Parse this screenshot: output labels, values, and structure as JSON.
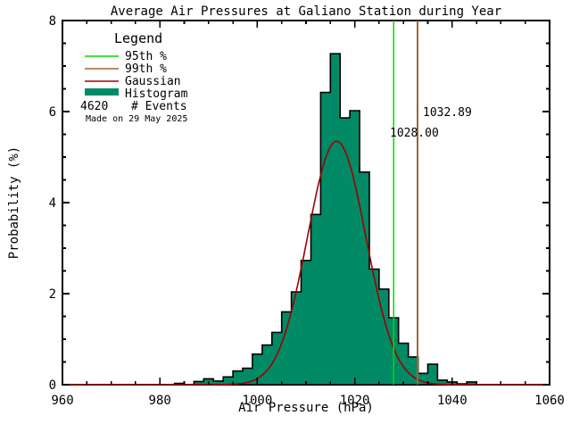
{
  "chart_data": {
    "type": "histogram",
    "title": "Average Air Pressures at Galiano Station during Year",
    "xlabel": "Air Pressure (hPa)",
    "ylabel": "Probability (%)",
    "xlim": [
      960,
      1060
    ],
    "ylim": [
      0,
      8
    ],
    "x_major_ticks": [
      960,
      980,
      1000,
      1020,
      1040,
      1060
    ],
    "y_major_ticks": [
      0,
      2,
      4,
      6,
      8
    ],
    "x_minor_step": 5,
    "y_minor_step": 0.5,
    "grid": "off",
    "bin_width_hpa": 2,
    "bin_centers": [
      984,
      986,
      988,
      990,
      992,
      994,
      996,
      998,
      1000,
      1002,
      1004,
      1006,
      1008,
      1010,
      1012,
      1014,
      1016,
      1018,
      1020,
      1022,
      1024,
      1026,
      1028,
      1030,
      1032,
      1034,
      1036,
      1038,
      1040,
      1042,
      1044
    ],
    "bin_values_percent": [
      0.03,
      0,
      0.07,
      0.13,
      0.08,
      0.17,
      0.3,
      0.36,
      0.67,
      0.87,
      1.15,
      1.6,
      2.04,
      2.73,
      3.74,
      6.42,
      7.27,
      5.86,
      6.02,
      4.67,
      2.54,
      2.1,
      1.47,
      0.91,
      0.61,
      0.25,
      0.45,
      0.1,
      0.06,
      0.02,
      0.06
    ],
    "histogram_color": "#008A66",
    "histogram_outline_color": "#000000",
    "gaussian_fit": {
      "mean": 1016.3,
      "sigma": 6.0,
      "peak_percent": 5.35,
      "color": "#A00000"
    },
    "percentile_95": {
      "value": 1028.0,
      "label": "1028.00",
      "color": "#00DC00"
    },
    "percentile_99": {
      "value": 1032.89,
      "label": "1032.89",
      "color": "#A06532"
    },
    "n_events": "4620",
    "legend": {
      "header": "Legend",
      "entries": [
        {
          "label": "95th %",
          "color": "#00DC00",
          "swatch": "line"
        },
        {
          "label": "99th %",
          "color": "#A06532",
          "swatch": "line"
        },
        {
          "label": "Gaussian",
          "color": "#A00000",
          "swatch": "line"
        },
        {
          "label": "Histogram",
          "color": "#008A66",
          "swatch": "bar"
        }
      ],
      "events_label": "# Events"
    },
    "watermark": {
      "text": "Made on 29 May 2025",
      "color": "#B2CDB2"
    },
    "axis_color": "#000000",
    "background_color": "#FFFFFF"
  }
}
